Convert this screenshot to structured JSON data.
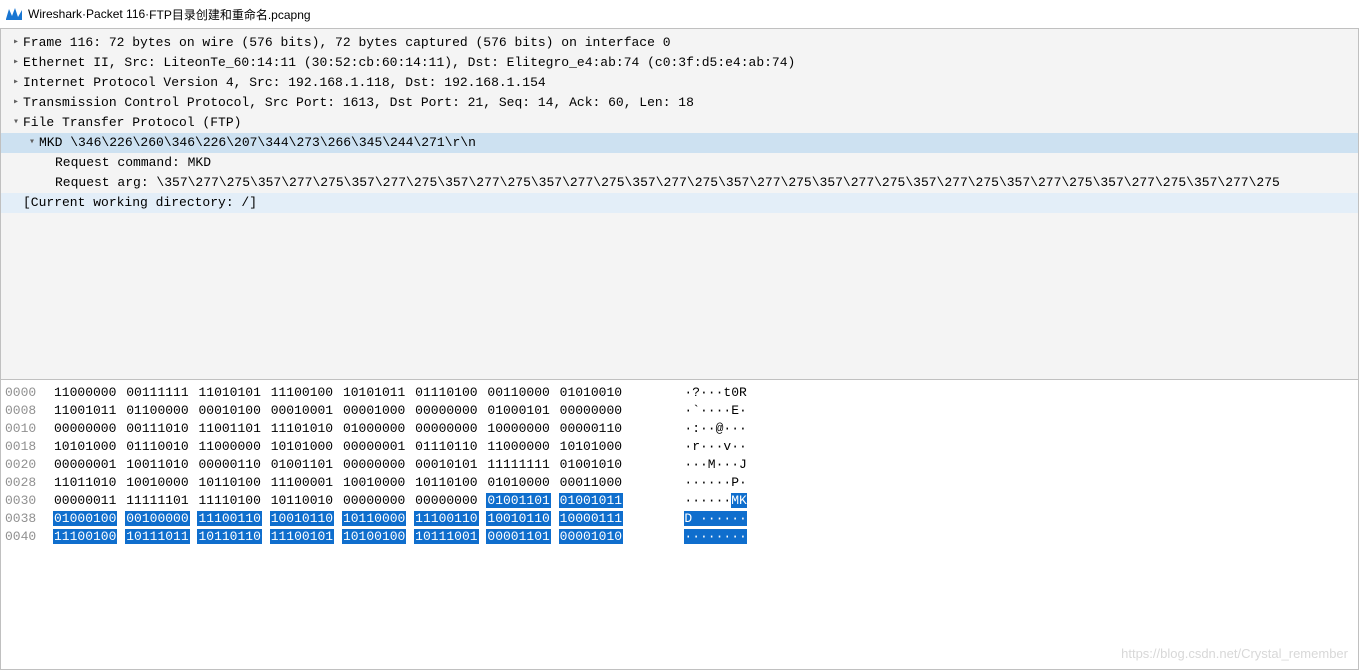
{
  "window": {
    "app_name": "Wireshark",
    "separator": " · ",
    "packet_label": "Packet 116",
    "filename": "FTP目录创建和重命名.pcapng"
  },
  "colors": {
    "selection_row": "#cde1f1",
    "info_row": "#e3eef8",
    "byte_highlight_bg": "#0f6ecd",
    "byte_highlight_fg": "#ffffff",
    "offset_color": "#909090",
    "detail_bg": "#f4f4f4",
    "border": "#c0c0c0"
  },
  "packet_tree": [
    {
      "depth": 0,
      "toggle": ">",
      "text": "Frame 116: 72 bytes on wire (576 bits), 72 bytes captured (576 bits) on interface 0",
      "hl": ""
    },
    {
      "depth": 0,
      "toggle": ">",
      "text": "Ethernet II, Src: LiteonTe_60:14:11 (30:52:cb:60:14:11), Dst: Elitegro_e4:ab:74 (c0:3f:d5:e4:ab:74)",
      "hl": ""
    },
    {
      "depth": 0,
      "toggle": ">",
      "text": "Internet Protocol Version 4, Src: 192.168.1.118, Dst: 192.168.1.154",
      "hl": ""
    },
    {
      "depth": 0,
      "toggle": ">",
      "text": "Transmission Control Protocol, Src Port: 1613, Dst Port: 21, Seq: 14, Ack: 60, Len: 18",
      "hl": ""
    },
    {
      "depth": 0,
      "toggle": "v",
      "text": "File Transfer Protocol (FTP)",
      "hl": ""
    },
    {
      "depth": 1,
      "toggle": "v",
      "text": "MKD \\346\\226\\260\\346\\226\\207\\344\\273\\266\\345\\244\\271\\r\\n",
      "hl": "sel"
    },
    {
      "depth": 2,
      "toggle": "",
      "text": "Request command: MKD",
      "hl": ""
    },
    {
      "depth": 2,
      "toggle": "",
      "text": "Request arg: \\357\\277\\275\\357\\277\\275\\357\\277\\275\\357\\277\\275\\357\\277\\275\\357\\277\\275\\357\\277\\275\\357\\277\\275\\357\\277\\275\\357\\277\\275\\357\\277\\275\\357\\277\\275",
      "hl": ""
    },
    {
      "depth": 0,
      "toggle": "",
      "text": "[Current working directory: /]",
      "hl": "info"
    }
  ],
  "hex_rows": [
    {
      "offset": "0000",
      "bytes": [
        "11000000",
        "00111111",
        "11010101",
        "11100100",
        "10101011",
        "01110100",
        "00110000",
        "01010010"
      ],
      "sel": [
        0,
        0,
        0,
        0,
        0,
        0,
        0,
        0
      ],
      "ascii_segs": [
        {
          "t": "·?···t0R",
          "s": 0
        }
      ]
    },
    {
      "offset": "0008",
      "bytes": [
        "11001011",
        "01100000",
        "00010100",
        "00010001",
        "00001000",
        "00000000",
        "01000101",
        "00000000"
      ],
      "sel": [
        0,
        0,
        0,
        0,
        0,
        0,
        0,
        0
      ],
      "ascii_segs": [
        {
          "t": "·`····E·",
          "s": 0
        }
      ]
    },
    {
      "offset": "0010",
      "bytes": [
        "00000000",
        "00111010",
        "11001101",
        "11101010",
        "01000000",
        "00000000",
        "10000000",
        "00000110"
      ],
      "sel": [
        0,
        0,
        0,
        0,
        0,
        0,
        0,
        0
      ],
      "ascii_segs": [
        {
          "t": "·:··@···",
          "s": 0
        }
      ]
    },
    {
      "offset": "0018",
      "bytes": [
        "10101000",
        "01110010",
        "11000000",
        "10101000",
        "00000001",
        "01110110",
        "11000000",
        "10101000"
      ],
      "sel": [
        0,
        0,
        0,
        0,
        0,
        0,
        0,
        0
      ],
      "ascii_segs": [
        {
          "t": "·r···v··",
          "s": 0
        }
      ]
    },
    {
      "offset": "0020",
      "bytes": [
        "00000001",
        "10011010",
        "00000110",
        "01001101",
        "00000000",
        "00010101",
        "11111111",
        "01001010"
      ],
      "sel": [
        0,
        0,
        0,
        0,
        0,
        0,
        0,
        0
      ],
      "ascii_segs": [
        {
          "t": "···M···J",
          "s": 0
        }
      ]
    },
    {
      "offset": "0028",
      "bytes": [
        "11011010",
        "10010000",
        "10110100",
        "11100001",
        "10010000",
        "10110100",
        "01010000",
        "00011000"
      ],
      "sel": [
        0,
        0,
        0,
        0,
        0,
        0,
        0,
        0
      ],
      "ascii_segs": [
        {
          "t": "······P·",
          "s": 0
        }
      ]
    },
    {
      "offset": "0030",
      "bytes": [
        "00000011",
        "11111101",
        "11110100",
        "10110010",
        "00000000",
        "00000000",
        "01001101",
        "01001011"
      ],
      "sel": [
        0,
        0,
        0,
        0,
        0,
        0,
        1,
        1
      ],
      "ascii_segs": [
        {
          "t": "······",
          "s": 0
        },
        {
          "t": "MK",
          "s": 1
        }
      ]
    },
    {
      "offset": "0038",
      "bytes": [
        "01000100",
        "00100000",
        "11100110",
        "10010110",
        "10110000",
        "11100110",
        "10010110",
        "10000111"
      ],
      "sel": [
        1,
        1,
        1,
        1,
        1,
        1,
        1,
        1
      ],
      "ascii_segs": [
        {
          "t": "D ······",
          "s": 1
        }
      ]
    },
    {
      "offset": "0040",
      "bytes": [
        "11100100",
        "10111011",
        "10110110",
        "11100101",
        "10100100",
        "10111001",
        "00001101",
        "00001010"
      ],
      "sel": [
        1,
        1,
        1,
        1,
        1,
        1,
        1,
        1
      ],
      "ascii_segs": [
        {
          "t": "········",
          "s": 1
        }
      ]
    }
  ],
  "watermark": "https://blog.csdn.net/Crystal_remember"
}
